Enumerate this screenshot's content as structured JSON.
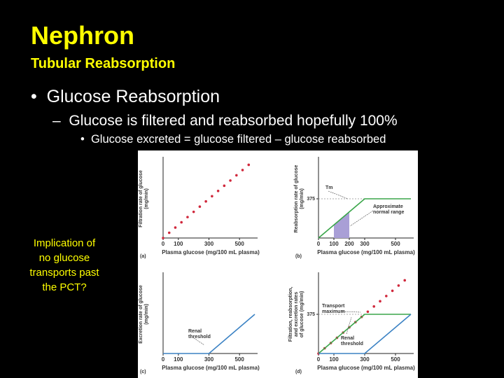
{
  "slide": {
    "title": "Nephron",
    "subtitle": "Tubular Reabsorption",
    "bullet": "Glucose Reabsorption",
    "sub_bullet": "Glucose is filtered and reabsorbed hopefully 100%",
    "sub_sub_bullet": "Glucose excreted = glucose filtered – glucose reabsorbed",
    "side_note": [
      "Implication of",
      "no glucose",
      "transports past",
      "the PCT?"
    ]
  },
  "chart_data": [
    {
      "type": "line",
      "label": "(a)",
      "xlabel": "Plasma glucose (mg/100 mL plasma)",
      "ylabel": [
        "Filtration rate of glucose",
        "(mg/min)"
      ],
      "xlim": [
        0,
        600
      ],
      "ylim": [
        0,
        750
      ],
      "xticks": [
        0,
        100,
        300,
        500
      ],
      "yticks": [],
      "series": [
        {
          "style": "dots",
          "color": "#d0283c",
          "x": [
            0,
            40,
            80,
            120,
            160,
            200,
            240,
            280,
            320,
            360,
            400,
            440,
            480,
            520,
            560
          ],
          "values": [
            0,
            50,
            100,
            150,
            200,
            250,
            300,
            350,
            400,
            450,
            500,
            550,
            600,
            650,
            700
          ]
        }
      ],
      "annotations": []
    },
    {
      "type": "line",
      "label": "(b)",
      "xlabel": "Plasma glucose (mg/100 mL plasma)",
      "ylabel": [
        "Reabsorption rate of glucose",
        "(mg/min)"
      ],
      "xlim": [
        0,
        600
      ],
      "ylim": [
        0,
        750
      ],
      "xticks": [
        0,
        100,
        200,
        300,
        500
      ],
      "yticks": [
        375
      ],
      "shade": [
        100,
        200
      ],
      "shade_color": "#a99fd6",
      "series": [
        {
          "style": "line",
          "color": "#3aa64a",
          "x": [
            0,
            300,
            600
          ],
          "values": [
            0,
            375,
            375
          ]
        }
      ],
      "annotations": [
        [
          "Tm"
        ],
        [
          "Approximate",
          "normal range"
        ]
      ]
    },
    {
      "type": "line",
      "label": "(c)",
      "xlabel": "Plasma glucose (mg/100 mL plasma)",
      "ylabel": [
        "Excretion rate of glucose",
        "(mg/min)"
      ],
      "xlim": [
        0,
        600
      ],
      "ylim": [
        0,
        750
      ],
      "xticks": [
        0,
        100,
        300,
        500
      ],
      "yticks": [],
      "series": [
        {
          "style": "line",
          "color": "#3b82c4",
          "x": [
            0,
            300,
            600
          ],
          "values": [
            0,
            0,
            375
          ]
        }
      ],
      "annotations": [
        [
          "Renal",
          "threshold"
        ]
      ]
    },
    {
      "type": "line",
      "label": "(d)",
      "xlabel": "Plasma glucose (mg/100 mL plasma)",
      "ylabel": [
        "Filtration, reabsorption,",
        "and excretion rates",
        "of glucose (mg/min)"
      ],
      "xlim": [
        0,
        600
      ],
      "ylim": [
        0,
        750
      ],
      "xticks": [
        0,
        100,
        300,
        500
      ],
      "yticks": [
        375
      ],
      "series": [
        {
          "style": "dots",
          "color": "#d0283c",
          "x": [
            0,
            40,
            80,
            120,
            160,
            200,
            240,
            280,
            320,
            360,
            400,
            440,
            480,
            520,
            560
          ],
          "values": [
            0,
            50,
            100,
            150,
            200,
            250,
            300,
            350,
            400,
            450,
            500,
            550,
            600,
            650,
            700
          ]
        },
        {
          "style": "line",
          "color": "#3aa64a",
          "x": [
            0,
            300,
            600
          ],
          "values": [
            0,
            375,
            375
          ]
        },
        {
          "style": "line",
          "color": "#3b82c4",
          "x": [
            0,
            300,
            600
          ],
          "values": [
            0,
            0,
            375
          ]
        }
      ],
      "annotations": [
        [
          "Transport",
          "maximum"
        ],
        [
          "Renal",
          "threshold"
        ]
      ]
    }
  ]
}
